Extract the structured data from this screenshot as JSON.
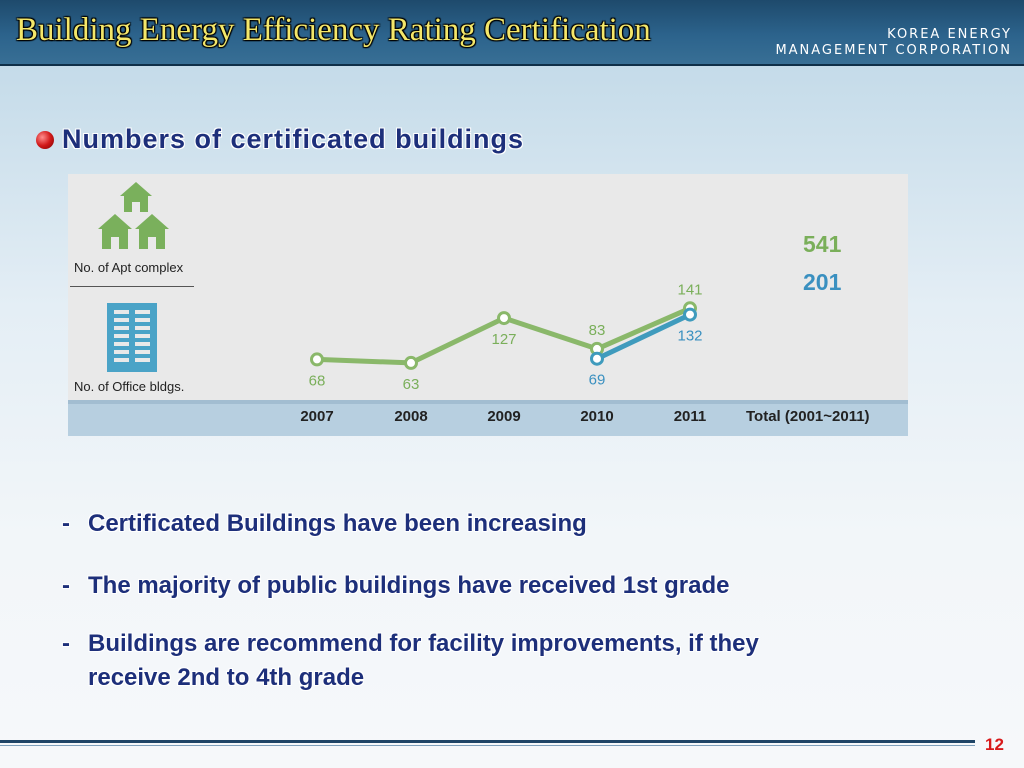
{
  "header": {
    "title": "Building Energy Efficiency Rating Certification",
    "corp_line1": "KOREA ENERGY",
    "corp_line2": "MANAGEMENT CORPORATION"
  },
  "heading": "Numbers of certificated buildings",
  "chart_data": {
    "type": "line",
    "x": [
      "2007",
      "2008",
      "2009",
      "2010",
      "2011"
    ],
    "total_label": "Total (2001~2011)",
    "series": [
      {
        "name": "No. of Apt complex",
        "color": "#8ab86a",
        "label_color": "#7aaf5a",
        "values": [
          68,
          63,
          127,
          83,
          141
        ],
        "total": "541"
      },
      {
        "name": "No. of Office bldgs.",
        "color": "#3f9bbd",
        "label_color": "#3a90c0",
        "values": [
          null,
          null,
          null,
          69,
          132
        ],
        "total": "201"
      }
    ],
    "icons": [
      "houses-icon",
      "office-building-icon"
    ]
  },
  "bullets": [
    {
      "dash": "-",
      "text": "Certificated Buildings have been increasing"
    },
    {
      "dash": "-",
      "text": "The majority of public buildings have received 1st grade"
    },
    {
      "dash": "-",
      "text": "Buildings are recommend for facility improvements,  if they",
      "cont": "receive  2nd to 4th grade"
    }
  ],
  "page_number": "12"
}
